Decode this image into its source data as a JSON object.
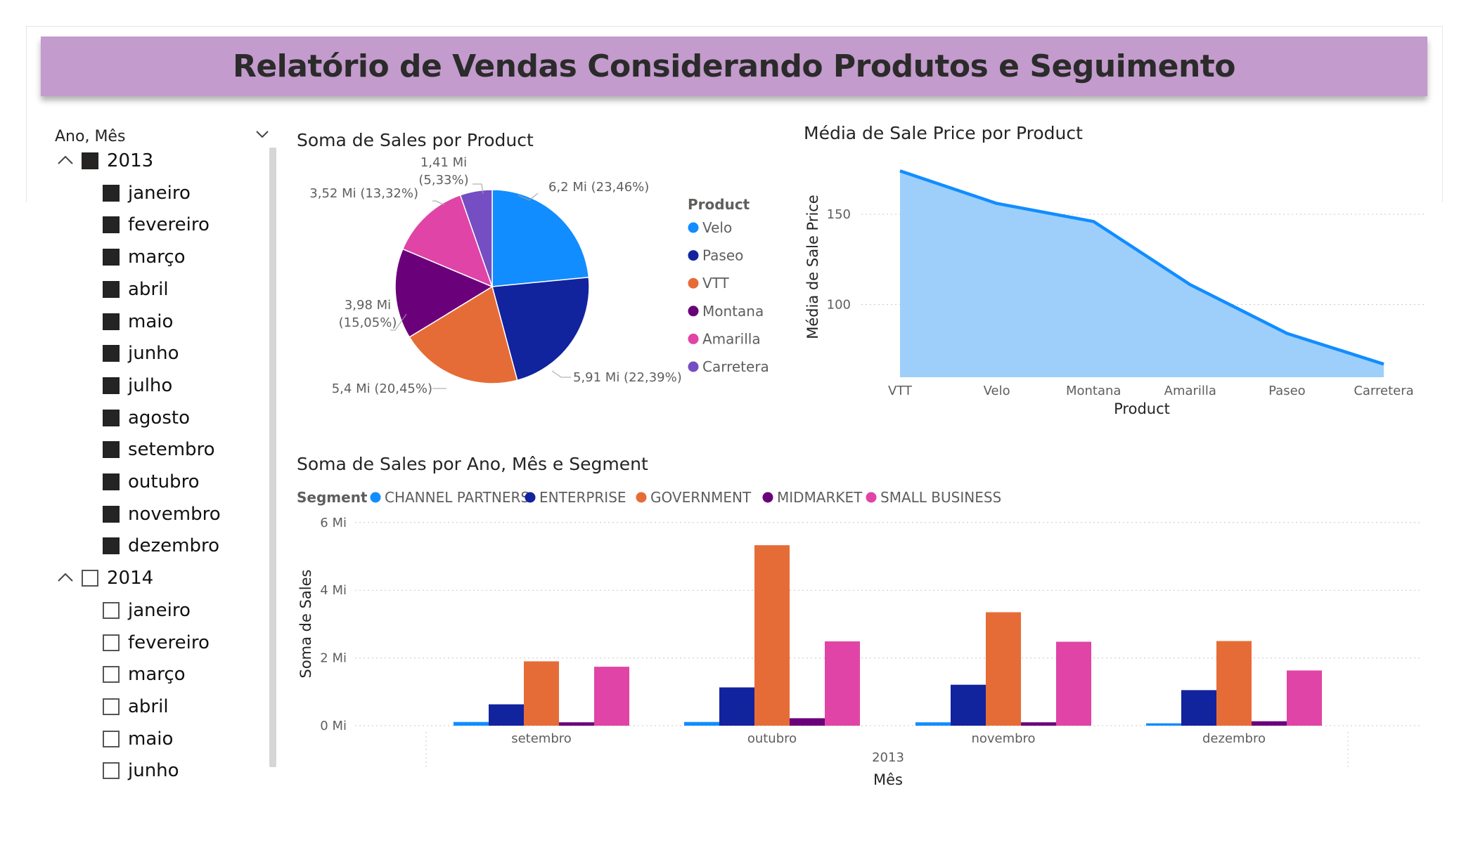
{
  "header": {
    "title": "Relatório de Vendas Considerando Produtos e Seguimento"
  },
  "slicer": {
    "title": "Ano, Mês",
    "years": [
      {
        "year": "2013",
        "checked": true,
        "months": [
          "janeiro",
          "fevereiro",
          "março",
          "abril",
          "maio",
          "junho",
          "julho",
          "agosto",
          "setembro",
          "outubro",
          "novembro",
          "dezembro"
        ]
      },
      {
        "year": "2014",
        "checked": false,
        "months": [
          "janeiro",
          "fevereiro",
          "março",
          "abril",
          "maio",
          "junho"
        ]
      }
    ]
  },
  "chart_data": [
    {
      "type": "pie",
      "title": "Soma de Sales por Product",
      "legend_title": "Product",
      "legend_position": "right",
      "slices": [
        {
          "label": "Velo",
          "value": 6.2,
          "display": "6,2 Mi (23,46%)",
          "color": "#118dff"
        },
        {
          "label": "Paseo",
          "value": 5.91,
          "display": "5,91 Mi (22,39%)",
          "color": "#12239e"
        },
        {
          "label": "VTT",
          "value": 5.4,
          "display": "5,4 Mi (20,45%)",
          "color": "#e66c37"
        },
        {
          "label": "Montana",
          "value": 3.98,
          "display_line1": "3,98 Mi",
          "display_line2": "(15,05%)",
          "color": "#6b007b"
        },
        {
          "label": "Amarilla",
          "value": 3.52,
          "display": "3,52 Mi (13,32%)",
          "color": "#e044a7"
        },
        {
          "label": "Carretera",
          "value": 1.41,
          "display_line1": "1,41 Mi",
          "display_line2": "(5,33%)",
          "color": "#744ec2"
        }
      ]
    },
    {
      "type": "area",
      "title": "Média de Sale Price por Product",
      "xlabel": "Product",
      "ylabel": "Média de Sale Price",
      "categories": [
        "VTT",
        "Velo",
        "Montana",
        "Amarilla",
        "Paseo",
        "Carreteira"
      ],
      "categories_display": [
        "VTT",
        "Velo",
        "Montana",
        "Amarilla",
        "Paseo",
        "Carretera"
      ],
      "values": [
        174,
        156,
        146,
        111,
        84,
        67
      ],
      "ylim": [
        60,
        180
      ],
      "yticks": [
        100,
        150
      ],
      "color_fill": "#9ecffb",
      "color_line": "#118dff"
    },
    {
      "type": "bar",
      "title": "Soma de Sales por Ano, Mês e Segment",
      "legend_title": "Segment",
      "legend_position": "top-left",
      "xlabel": "Mês",
      "ylabel": "Soma de Sales",
      "year_label": "2013",
      "categories": [
        "setembro",
        "outubro",
        "novembro",
        "dezembro"
      ],
      "ylim": [
        0,
        6
      ],
      "yticks": [
        0,
        2,
        4,
        6
      ],
      "ytick_labels": [
        "0 Mi",
        "2 Mi",
        "4 Mi",
        "6 Mi"
      ],
      "series": [
        {
          "name": "CHANNEL PARTNERS",
          "color": "#118dff",
          "values": [
            0.11,
            0.11,
            0.1,
            0.07
          ]
        },
        {
          "name": "ENTERPRISE",
          "color": "#12239e",
          "values": [
            0.63,
            1.13,
            1.21,
            1.05
          ]
        },
        {
          "name": "GOVERNMENT",
          "color": "#e66c37",
          "values": [
            1.9,
            5.33,
            3.35,
            2.5
          ]
        },
        {
          "name": "MIDMARKET",
          "color": "#6b007b",
          "values": [
            0.1,
            0.22,
            0.1,
            0.13
          ]
        },
        {
          "name": "SMALL BUSINESS",
          "color": "#e044a7",
          "values": [
            1.74,
            2.49,
            2.48,
            1.63
          ]
        }
      ]
    }
  ]
}
